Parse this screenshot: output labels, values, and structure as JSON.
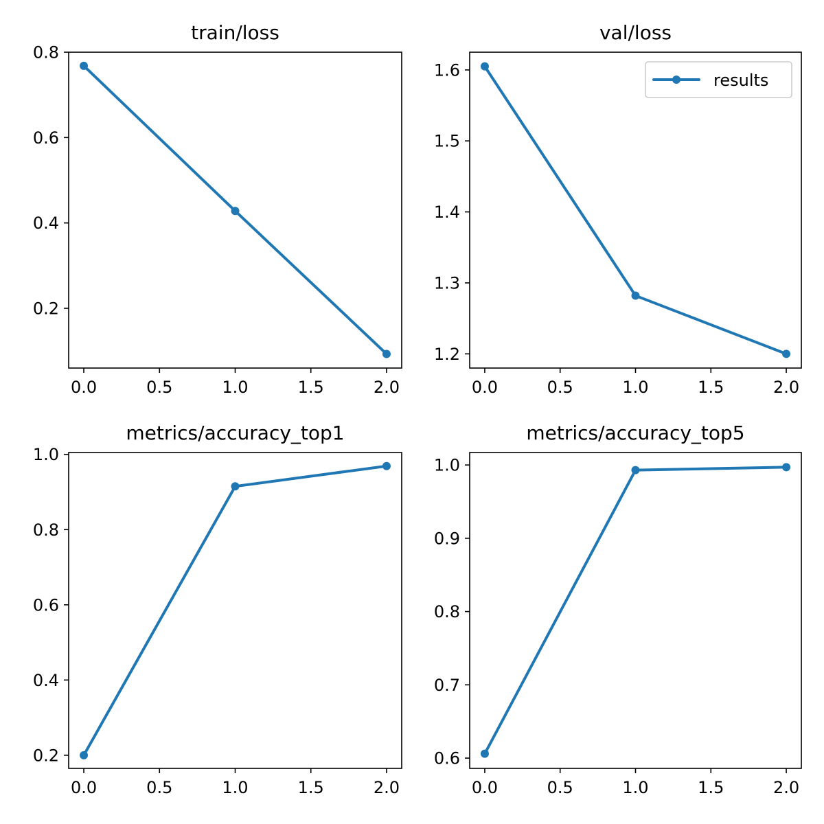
{
  "colors": {
    "series": "#1f77b4",
    "axis": "#000000"
  },
  "chart_data": [
    {
      "type": "line",
      "title": "train/loss",
      "x": [
        0,
        1,
        2
      ],
      "series": [
        {
          "name": "results",
          "values": [
            0.768,
            0.428,
            0.093
          ]
        }
      ],
      "xlim": [
        -0.1,
        2.1
      ],
      "ylim": [
        0.06,
        0.8
      ],
      "xticks": [
        0.0,
        0.5,
        1.0,
        1.5,
        2.0
      ],
      "xtick_labels": [
        "0.0",
        "0.5",
        "1.0",
        "1.5",
        "2.0"
      ],
      "yticks": [
        0.2,
        0.4,
        0.6,
        0.8
      ],
      "ytick_labels": [
        "0.2",
        "0.4",
        "0.6",
        "0.8"
      ],
      "grid": false,
      "legend": false
    },
    {
      "type": "line",
      "title": "val/loss",
      "x": [
        0,
        1,
        2
      ],
      "series": [
        {
          "name": "results",
          "values": [
            1.605,
            1.282,
            1.2
          ]
        }
      ],
      "xlim": [
        -0.1,
        2.1
      ],
      "ylim": [
        1.18,
        1.625
      ],
      "xticks": [
        0.0,
        0.5,
        1.0,
        1.5,
        2.0
      ],
      "xtick_labels": [
        "0.0",
        "0.5",
        "1.0",
        "1.5",
        "2.0"
      ],
      "yticks": [
        1.2,
        1.3,
        1.4,
        1.5,
        1.6
      ],
      "ytick_labels": [
        "1.2",
        "1.3",
        "1.4",
        "1.5",
        "1.6"
      ],
      "grid": false,
      "legend": true,
      "legend_position": "top-right"
    },
    {
      "type": "line",
      "title": "metrics/accuracy_top1",
      "x": [
        0,
        1,
        2
      ],
      "series": [
        {
          "name": "results",
          "values": [
            0.2,
            0.915,
            0.969
          ]
        }
      ],
      "xlim": [
        -0.1,
        2.1
      ],
      "ylim": [
        0.165,
        1.005
      ],
      "xticks": [
        0.0,
        0.5,
        1.0,
        1.5,
        2.0
      ],
      "xtick_labels": [
        "0.0",
        "0.5",
        "1.0",
        "1.5",
        "2.0"
      ],
      "yticks": [
        0.2,
        0.4,
        0.6,
        0.8,
        1.0
      ],
      "ytick_labels": [
        "0.2",
        "0.4",
        "0.6",
        "0.8",
        "1.0"
      ],
      "grid": false,
      "legend": false
    },
    {
      "type": "line",
      "title": "metrics/accuracy_top5",
      "x": [
        0,
        1,
        2
      ],
      "series": [
        {
          "name": "results",
          "values": [
            0.606,
            0.993,
            0.997
          ]
        }
      ],
      "xlim": [
        -0.1,
        2.1
      ],
      "ylim": [
        0.586,
        1.017
      ],
      "xticks": [
        0.0,
        0.5,
        1.0,
        1.5,
        2.0
      ],
      "xtick_labels": [
        "0.0",
        "0.5",
        "1.0",
        "1.5",
        "2.0"
      ],
      "yticks": [
        0.6,
        0.7,
        0.8,
        0.9,
        1.0
      ],
      "ytick_labels": [
        "0.6",
        "0.7",
        "0.8",
        "0.9",
        "1.0"
      ],
      "grid": false,
      "legend": false
    }
  ]
}
